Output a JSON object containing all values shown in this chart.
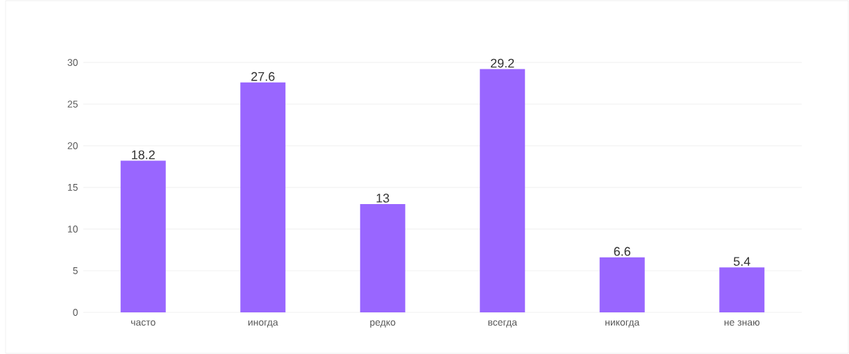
{
  "chart_data": {
    "type": "bar",
    "categories": [
      "часто",
      "иногда",
      "редко",
      "всегда",
      "никогда",
      "не знаю"
    ],
    "values": [
      18.2,
      27.6,
      13,
      29.2,
      6.6,
      5.4
    ],
    "color": "#9966ff",
    "ylim": [
      0,
      30
    ],
    "yticks": [
      0,
      5,
      10,
      15,
      20,
      25,
      30
    ],
    "grid": "y",
    "data_labels": true
  }
}
